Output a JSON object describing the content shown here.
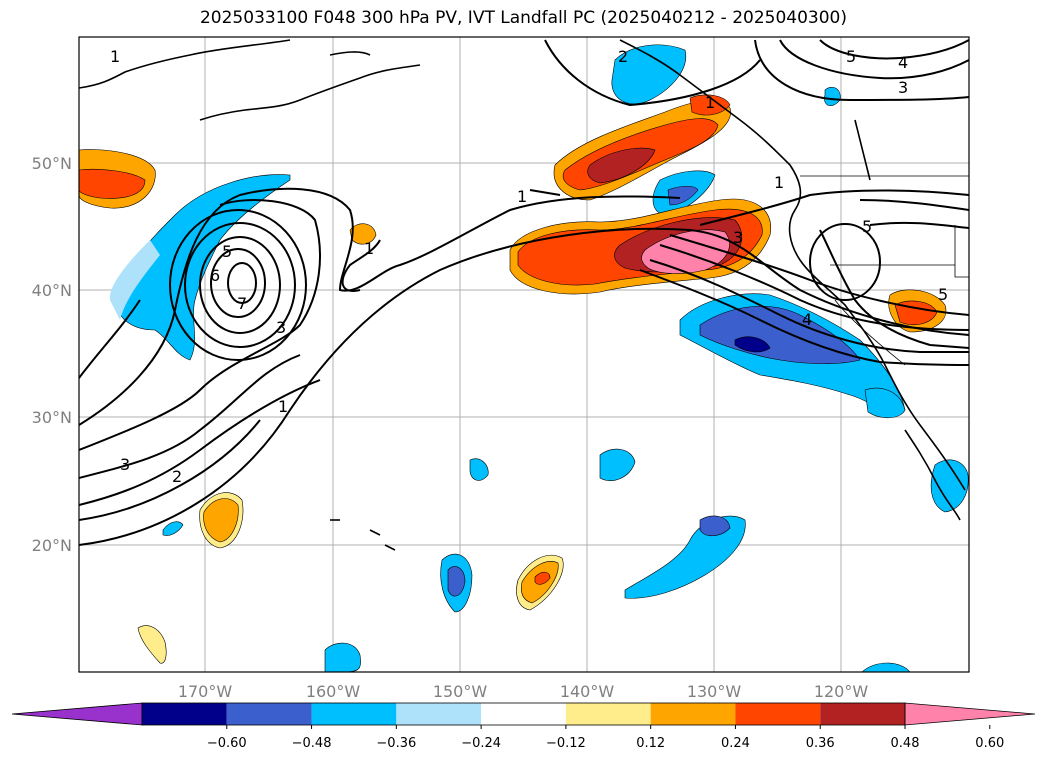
{
  "title": "2025033100 F048 300 hPa PV, IVT Landfall PC (2025040212 - 2025040300)",
  "map": {
    "lat_labels": [
      "50°N",
      "40°N",
      "30°N",
      "20°N"
    ],
    "lon_labels": [
      "170°W",
      "160°W",
      "150°W",
      "140°W",
      "130°W",
      "120°W"
    ]
  },
  "contour_labels": [
    "1",
    "2",
    "3",
    "4",
    "5",
    "1",
    "1",
    "1",
    "5",
    "6",
    "7",
    "3",
    "1",
    "3",
    "2",
    "3",
    "5",
    "4",
    "5",
    "1"
  ],
  "colorbar": {
    "colors": [
      "#9932cc",
      "#00008b",
      "#3b5fcd",
      "#00bfff",
      "#aee2fa",
      "#ffffff",
      "#ffec8b",
      "#ffa500",
      "#ff4500",
      "#b22222",
      "#ff82ab"
    ],
    "tick_labels": [
      "−0.60",
      "−0.48",
      "−0.36",
      "−0.24",
      "−0.12",
      "0.12",
      "0.24",
      "0.36",
      "0.48",
      "0.60"
    ]
  }
}
